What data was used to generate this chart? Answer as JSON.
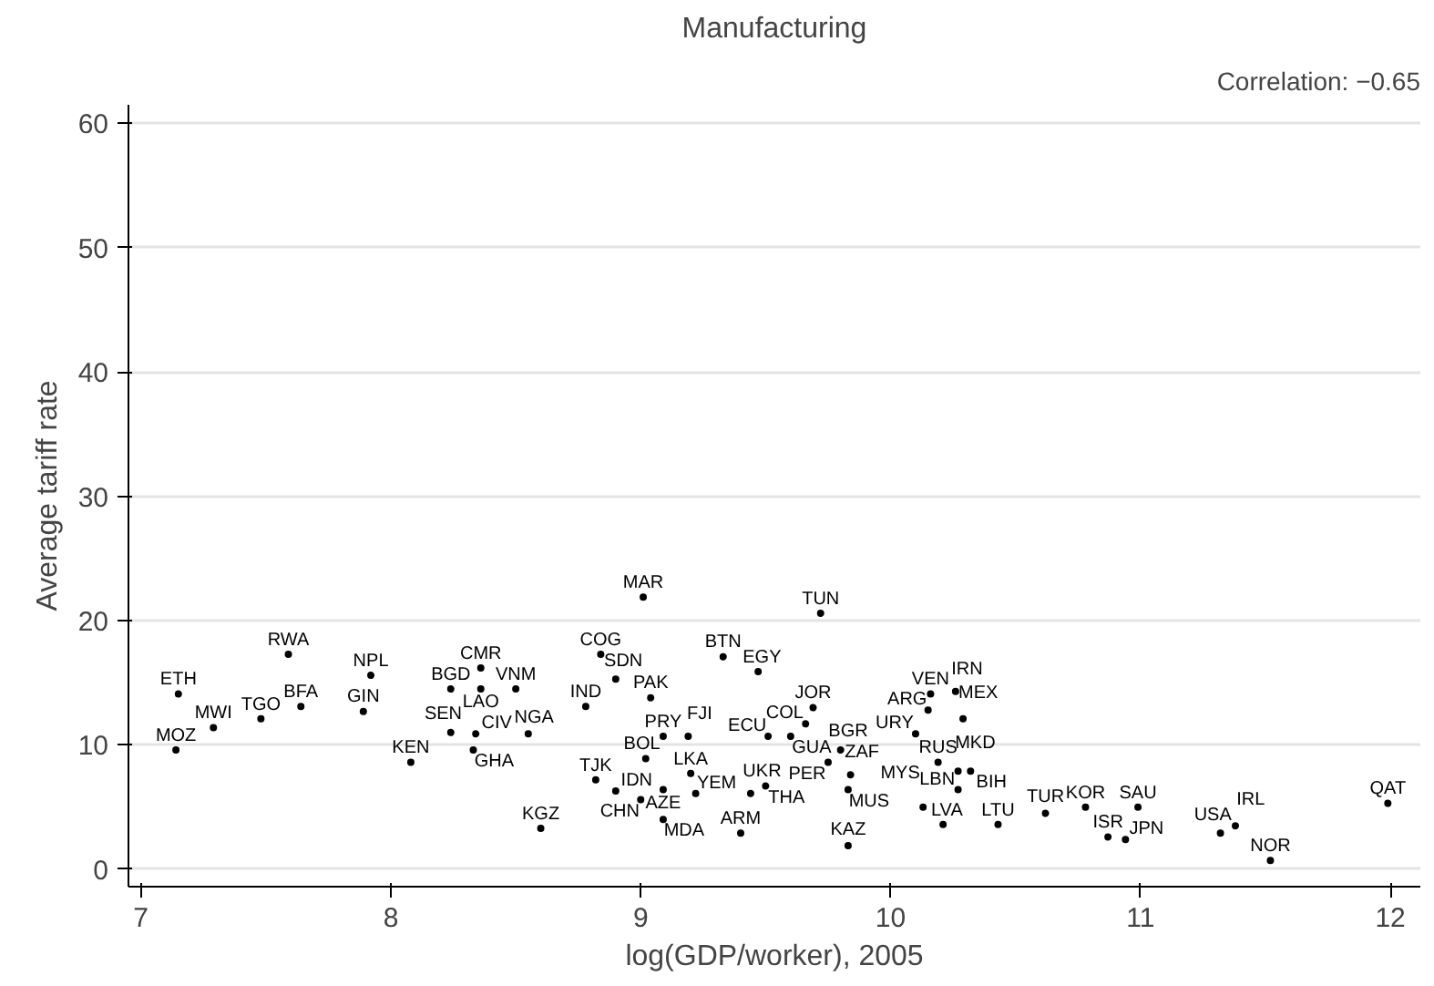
{
  "chart_data": {
    "type": "scatter",
    "title": "Manufacturing",
    "xlabel": "log(GDP/worker), 2005",
    "ylabel": "Average tariff rate",
    "annotations": [
      "Correlation: −0.65"
    ],
    "xlim": [
      6.95,
      12.12
    ],
    "ylim": [
      -1.4,
      61.5
    ],
    "xticks": [
      7,
      8,
      9,
      10,
      11,
      12
    ],
    "yticks": [
      0,
      10,
      20,
      30,
      40,
      50,
      60
    ],
    "grid": "y",
    "marker": "circle",
    "series": [
      {
        "color": "#000000",
        "x": [
          9.01,
          9.72,
          7.59,
          7.92,
          8.36,
          8.84,
          8.9,
          9.33,
          9.47,
          7.15,
          8.24,
          8.36,
          8.5,
          8.78,
          9.04,
          7.29,
          7.48,
          7.64,
          7.89,
          9.69,
          10.16,
          10.26,
          10.15,
          10.29,
          9.66,
          10.1,
          7.14,
          8.24,
          8.34,
          8.55,
          8.33,
          8.08,
          9.09,
          9.19,
          9.51,
          9.6,
          9.8,
          10.19,
          9.75,
          9.84,
          9.83,
          10.27,
          10.32,
          10.27,
          9.02,
          8.82,
          9.2,
          8.9,
          9.09,
          9.0,
          9.22,
          9.44,
          9.5,
          9.09,
          8.6,
          9.4,
          9.83,
          10.13,
          10.21,
          10.43,
          10.62,
          10.78,
          10.99,
          10.87,
          10.94,
          11.32,
          11.38,
          11.52,
          11.99
        ],
        "values": [
          21.9,
          20.6,
          17.3,
          15.6,
          16.2,
          17.3,
          15.3,
          17.1,
          15.9,
          14.1,
          14.5,
          14.5,
          14.5,
          13.1,
          13.8,
          11.4,
          12.1,
          13.1,
          12.7,
          13.0,
          14.1,
          14.3,
          12.8,
          12.1,
          11.7,
          10.9,
          9.6,
          11.0,
          10.9,
          10.9,
          9.6,
          8.6,
          10.7,
          10.7,
          10.7,
          10.7,
          9.6,
          8.6,
          8.6,
          7.6,
          6.4,
          7.9,
          7.9,
          6.4,
          8.9,
          7.2,
          7.7,
          6.3,
          6.4,
          5.6,
          6.1,
          6.1,
          6.7,
          4.0,
          3.3,
          2.9,
          1.9,
          5.0,
          3.6,
          3.6,
          4.5,
          5.0,
          5.0,
          2.6,
          2.4,
          2.9,
          3.5,
          0.7,
          5.3
        ],
        "value_labels": [
          "MAR",
          "TUN",
          "RWA",
          "NPL",
          "CMR",
          "COG",
          "SDN",
          "BTN",
          "EGY",
          "ETH",
          "BGD",
          "LAO",
          "VNM",
          "IND",
          "PAK",
          "MWI",
          "TGO",
          "BFA",
          "GIN",
          "JOR",
          "VEN",
          "IRN",
          "ARG",
          "MEX",
          "COL",
          "URY",
          "MOZ",
          "SEN",
          "CIV",
          "NGA",
          "GHA",
          "KEN",
          "PRY",
          "FJI",
          "ECU",
          "GUA",
          "BGR",
          "RUS",
          "PER",
          "ZAF",
          "MUS",
          "MKD",
          "BIH",
          "LBN",
          "BOL",
          "TJK",
          "LKA",
          "IDN",
          "AZE",
          "CHN",
          "YEM",
          "UKR",
          "THA",
          "MDA",
          "KGZ",
          "ARM",
          "KAZ",
          "MYS",
          "LVA",
          "LTU",
          "TUR",
          "KOR",
          "SAU",
          "ISR",
          "JPN",
          "USA",
          "IRL",
          "NOR",
          "QAT"
        ]
      }
    ]
  }
}
